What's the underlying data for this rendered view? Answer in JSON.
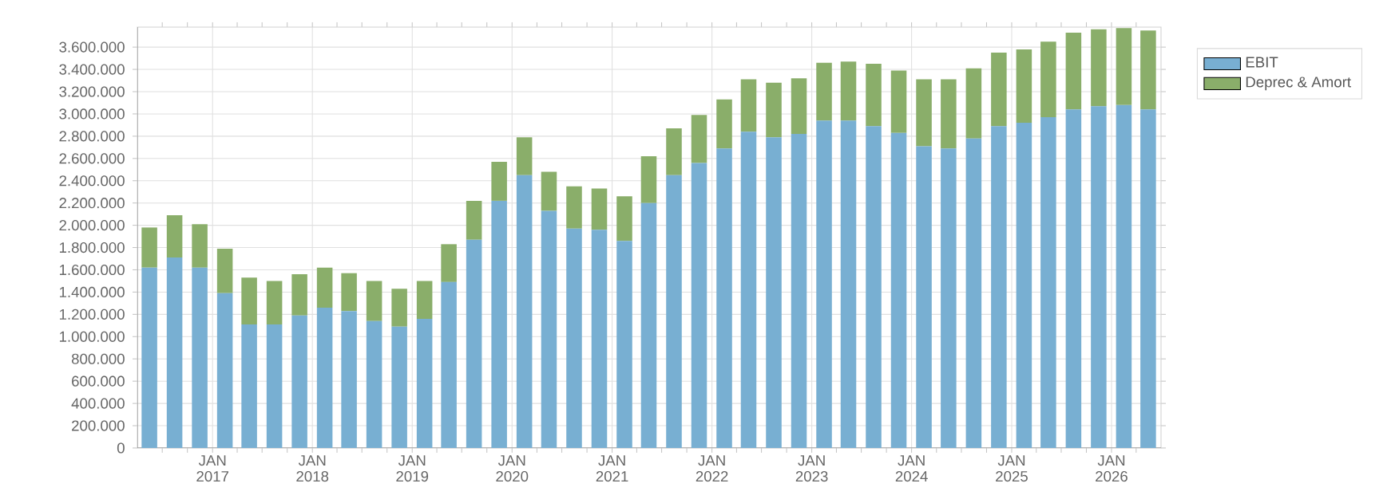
{
  "chart_data": {
    "type": "bar",
    "stacked": true,
    "grid": true,
    "legend": "right",
    "x": [
      "2016-05-15",
      "2016-08-15",
      "2016-11-15",
      "2017-02-15",
      "2017-05-15",
      "2017-08-15",
      "2017-11-15",
      "2018-02-15",
      "2018-05-15",
      "2018-08-15",
      "2018-11-15",
      "2019-02-15",
      "2019-05-15",
      "2019-08-15",
      "2019-11-15",
      "2020-02-15",
      "2020-05-15",
      "2020-08-15",
      "2020-11-15",
      "2021-02-15",
      "2021-05-15",
      "2021-08-15",
      "2021-11-15",
      "2022-02-15",
      "2022-05-15",
      "2022-08-15",
      "2022-11-15",
      "2023-02-15",
      "2023-05-15",
      "2023-08-15",
      "2023-11-15",
      "2024-02-15",
      "2024-05-15",
      "2024-08-15",
      "2024-11-15",
      "2025-02-15",
      "2025-05-15",
      "2025-08-15",
      "2025-11-15",
      "2026-02-15",
      "2026-05-15"
    ],
    "series": [
      {
        "name": "EBIT",
        "color": "#78afd2",
        "values": [
          1620000,
          1710000,
          1620000,
          1390000,
          1110000,
          1110000,
          1190000,
          1260000,
          1230000,
          1140000,
          1090000,
          1160000,
          1490000,
          1870000,
          2220000,
          2450000,
          2130000,
          1970000,
          1960000,
          1860000,
          2200000,
          2450000,
          2560000,
          2690000,
          2840000,
          2790000,
          2820000,
          2940000,
          2940000,
          2890000,
          2830000,
          2710000,
          2690000,
          2780000,
          2890000,
          2920000,
          2970000,
          3040000,
          3070000,
          3080000,
          3040000
        ]
      },
      {
        "name": "Deprec & Amort",
        "color": "#8aae6a",
        "values": [
          360000,
          380000,
          390000,
          400000,
          420000,
          390000,
          370000,
          360000,
          340000,
          360000,
          340000,
          340000,
          340000,
          350000,
          350000,
          340000,
          350000,
          380000,
          370000,
          400000,
          420000,
          420000,
          430000,
          440000,
          470000,
          490000,
          500000,
          520000,
          530000,
          560000,
          560000,
          600000,
          620000,
          630000,
          660000,
          660000,
          680000,
          690000,
          690000,
          690000,
          710000
        ]
      }
    ],
    "xlim": [
      "2016-04-01",
      "2026-07-01"
    ],
    "xticks": [
      {
        "value": "2016-07-01",
        "label": null
      },
      {
        "value": "2016-10-01",
        "label": null
      },
      {
        "value": "2017-01-01",
        "label": "JAN 2017"
      },
      {
        "value": "2017-04-01",
        "label": null
      },
      {
        "value": "2017-07-01",
        "label": null
      },
      {
        "value": "2017-10-01",
        "label": null
      },
      {
        "value": "2018-01-01",
        "label": "JAN 2018"
      },
      {
        "value": "2018-04-01",
        "label": null
      },
      {
        "value": "2018-07-01",
        "label": null
      },
      {
        "value": "2018-10-01",
        "label": null
      },
      {
        "value": "2019-01-01",
        "label": "JAN 2019"
      },
      {
        "value": "2019-04-01",
        "label": null
      },
      {
        "value": "2019-07-01",
        "label": null
      },
      {
        "value": "2019-10-01",
        "label": null
      },
      {
        "value": "2020-01-01",
        "label": "JAN 2020"
      },
      {
        "value": "2020-04-01",
        "label": null
      },
      {
        "value": "2020-07-01",
        "label": null
      },
      {
        "value": "2020-10-01",
        "label": null
      },
      {
        "value": "2021-01-01",
        "label": "JAN 2021"
      },
      {
        "value": "2021-04-01",
        "label": null
      },
      {
        "value": "2021-07-01",
        "label": null
      },
      {
        "value": "2021-10-01",
        "label": null
      },
      {
        "value": "2022-01-01",
        "label": "JAN 2022"
      },
      {
        "value": "2022-04-01",
        "label": null
      },
      {
        "value": "2022-07-01",
        "label": null
      },
      {
        "value": "2022-10-01",
        "label": null
      },
      {
        "value": "2023-01-01",
        "label": "JAN 2023"
      },
      {
        "value": "2023-04-01",
        "label": null
      },
      {
        "value": "2023-07-01",
        "label": null
      },
      {
        "value": "2023-10-01",
        "label": null
      },
      {
        "value": "2024-01-01",
        "label": "JAN 2024"
      },
      {
        "value": "2024-04-01",
        "label": null
      },
      {
        "value": "2024-07-01",
        "label": null
      },
      {
        "value": "2024-10-01",
        "label": null
      },
      {
        "value": "2025-01-01",
        "label": "JAN 2025"
      },
      {
        "value": "2025-04-01",
        "label": null
      },
      {
        "value": "2025-07-01",
        "label": null
      },
      {
        "value": "2025-10-01",
        "label": null
      },
      {
        "value": "2026-01-01",
        "label": "JAN 2026"
      },
      {
        "value": "2026-04-01",
        "label": null
      }
    ],
    "ylim": [
      0,
      3780000
    ],
    "yticks": [
      0,
      {
        "value": 200000,
        "label": "200.000"
      },
      {
        "value": 400000,
        "label": "400.000"
      },
      {
        "value": 600000,
        "label": "600.000"
      },
      {
        "value": 800000,
        "label": "800.000"
      },
      {
        "value": 1000000,
        "label": "1.000.000"
      },
      {
        "value": 1200000,
        "label": "1.200.000"
      },
      {
        "value": 1400000,
        "label": "1.400.000"
      },
      {
        "value": 1600000,
        "label": "1.600.000"
      },
      {
        "value": 1800000,
        "label": "1.800.000"
      },
      {
        "value": 2000000,
        "label": "2.000.000"
      },
      {
        "value": 2200000,
        "label": "2.200.000"
      },
      {
        "value": 2400000,
        "label": "2.400.000"
      },
      {
        "value": 2600000,
        "label": "2.600.000"
      },
      {
        "value": 2800000,
        "label": "2.800.000"
      },
      {
        "value": 3000000,
        "label": "3.000.000"
      },
      {
        "value": 3200000,
        "label": "3.200.000"
      },
      {
        "value": 3400000,
        "label": "3.400.000"
      },
      {
        "value": 3600000,
        "label": "3.600.000"
      }
    ]
  }
}
